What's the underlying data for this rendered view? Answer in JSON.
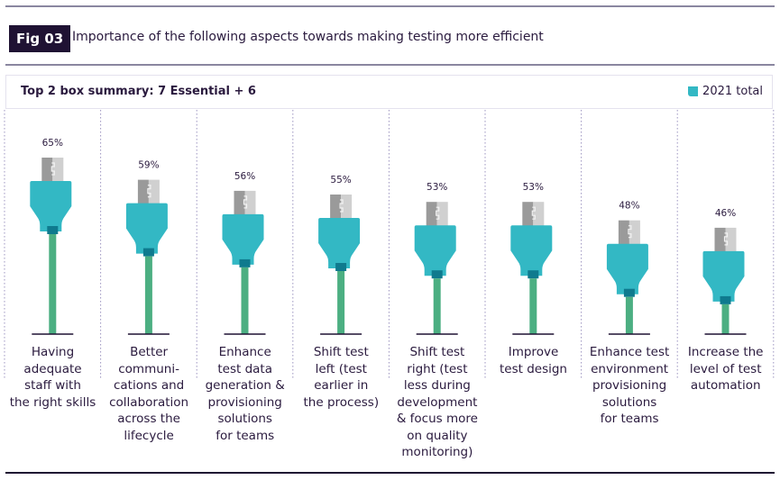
{
  "header": {
    "fig_label": "Fig 03",
    "title": "Importance of the following aspects towards making testing more efficient"
  },
  "summary": {
    "text": "Top 2 box summary: 7 Essential + 6",
    "legend_label": "2021 total",
    "legend_color": "#33b8c4"
  },
  "colors": {
    "plug": "#33b8c4",
    "collar": "#0f7a8e",
    "cable": "#4caf82",
    "metal_dark": "#9a9a9a",
    "metal_light": "#d0d0d0",
    "base": "#1f1233",
    "divider": "#9c94c0"
  },
  "chart_data": {
    "type": "bar",
    "title": "Importance of the following aspects towards making testing more efficient",
    "subtitle": "Top 2 box summary: 7 Essential + 6",
    "legend": [
      "2021 total"
    ],
    "legend_position": "top-right",
    "xlabel": "",
    "ylabel": "",
    "unit": "%",
    "categories": [
      "Having adequate staff with the right skills",
      "Better communi-cations and collaboration across the lifecycle",
      "Enhance test data generation & provisioning solutions for teams",
      "Shift test left (test earlier in the process)",
      "Shift test right (test less during development & focus more on quality monitoring)",
      "Improve test design",
      "Enhance test environment provisioning solutions for teams",
      "Increase the level of test automation"
    ],
    "category_lines": [
      [
        "Having",
        "adequate",
        "staff with",
        "the right skills"
      ],
      [
        "Better",
        "communi-",
        "cations and",
        "collaboration",
        "across the",
        "lifecycle"
      ],
      [
        "Enhance",
        "test data",
        "generation &",
        "provisioning",
        "solutions",
        "for teams"
      ],
      [
        "Shift test",
        "left (test",
        "earlier in",
        "the process)"
      ],
      [
        "Shift test",
        "right (test",
        "less during",
        "development",
        "& focus more",
        "on quality",
        "monitoring)"
      ],
      [
        "Improve",
        "test design"
      ],
      [
        "Enhance test",
        "environment",
        "provisioning",
        "solutions",
        "for teams"
      ],
      [
        "Increase the",
        "level of test",
        "automation"
      ]
    ],
    "series": [
      {
        "name": "2021 total",
        "values": [
          65,
          59,
          56,
          55,
          53,
          53,
          48,
          46
        ]
      }
    ],
    "value_labels": [
      "65%",
      "59%",
      "56%",
      "55%",
      "53%",
      "53%",
      "48%",
      "46%"
    ],
    "grid": false
  }
}
